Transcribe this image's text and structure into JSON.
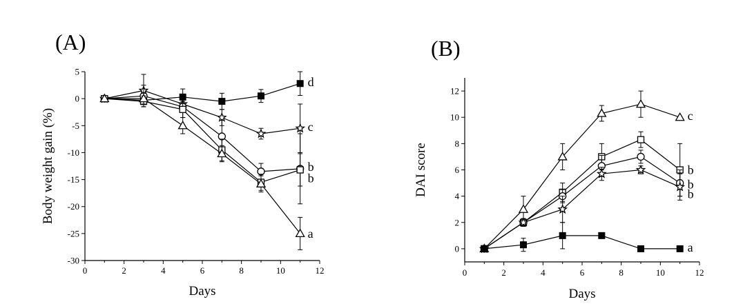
{
  "colors": {
    "ink": "#000000",
    "background": "#ffffff",
    "open_marker_fill": "#ffffff"
  },
  "chart_data": [
    {
      "panel": "(A)",
      "type": "line",
      "xlabel": "Days",
      "ylabel": "Body weight gain (%)",
      "xlim": [
        0,
        12
      ],
      "ylim": [
        -30,
        5
      ],
      "xticks": [
        0,
        2,
        4,
        6,
        8,
        10,
        12
      ],
      "yticks": [
        5,
        0,
        -5,
        -10,
        -15,
        -20,
        -25,
        -30
      ],
      "grid": false,
      "series": [
        {
          "name": "filled-square",
          "marker": "filled-square",
          "label": "d",
          "x": [
            1,
            3,
            5,
            7,
            9,
            11
          ],
          "y": [
            0,
            -0.3,
            0.3,
            -0.5,
            0.5,
            2.8
          ],
          "err": [
            0,
            0.8,
            1.5,
            1.5,
            1.2,
            2.2
          ]
        },
        {
          "name": "star",
          "marker": "star",
          "label": "c",
          "x": [
            1,
            3,
            5,
            7,
            9,
            11
          ],
          "y": [
            0,
            1.5,
            -1.0,
            -3.5,
            -6.5,
            -5.5
          ],
          "err": [
            0,
            3.0,
            1.5,
            1.5,
            1.0,
            4.5
          ]
        },
        {
          "name": "open-circle",
          "marker": "open-circle",
          "label": "b",
          "x": [
            1,
            3,
            5,
            7,
            9,
            11
          ],
          "y": [
            0,
            0.5,
            -1.5,
            -7.0,
            -13.5,
            -13.0
          ],
          "err": [
            0,
            2.0,
            2.0,
            3.0,
            1.5,
            6.5
          ]
        },
        {
          "name": "open-square",
          "marker": "open-square",
          "label": "b",
          "x": [
            1,
            3,
            5,
            7,
            9,
            11
          ],
          "y": [
            0,
            -0.5,
            -2.0,
            -9.5,
            -15.5,
            -13.2
          ],
          "err": [
            0,
            1.0,
            1.5,
            2.0,
            1.5,
            3.0
          ]
        },
        {
          "name": "open-triangle",
          "marker": "open-triangle",
          "label": "a",
          "x": [
            1,
            3,
            5,
            7,
            9,
            11
          ],
          "y": [
            0,
            0,
            -5.0,
            -10.2,
            -15.8,
            -25.0
          ],
          "err": [
            0,
            1.0,
            1.5,
            1.5,
            1.5,
            3.0
          ]
        }
      ]
    },
    {
      "panel": "(B)",
      "type": "line",
      "xlabel": "Days",
      "ylabel": "DAI score",
      "xlim": [
        0,
        12
      ],
      "ylim": [
        -1,
        13
      ],
      "xticks": [
        0,
        2,
        4,
        6,
        8,
        10,
        12
      ],
      "yticks": [
        0,
        2,
        4,
        6,
        8,
        10,
        12
      ],
      "grid": false,
      "series": [
        {
          "name": "open-triangle",
          "marker": "open-triangle",
          "label": "c",
          "x": [
            1,
            3,
            5,
            7,
            9,
            11
          ],
          "y": [
            0,
            3.0,
            7.0,
            10.3,
            11.0,
            10.0
          ],
          "err": [
            0,
            1.0,
            1.0,
            0.6,
            1.0,
            0
          ]
        },
        {
          "name": "open-square",
          "marker": "open-square",
          "label": "b",
          "x": [
            1,
            3,
            5,
            7,
            9,
            11
          ],
          "y": [
            0,
            2.0,
            4.3,
            7.0,
            8.3,
            6.0
          ],
          "err": [
            0,
            0.3,
            0.7,
            1.0,
            0.6,
            2.0
          ]
        },
        {
          "name": "open-circle",
          "marker": "open-circle",
          "label": "b",
          "x": [
            1,
            3,
            5,
            7,
            9,
            11
          ],
          "y": [
            0,
            2.0,
            4.0,
            6.3,
            7.0,
            5.0
          ],
          "err": [
            0,
            0.3,
            0.5,
            0.8,
            0.5,
            1.0
          ]
        },
        {
          "name": "star",
          "marker": "star",
          "label": "b",
          "x": [
            1,
            3,
            5,
            7,
            9,
            11
          ],
          "y": [
            0,
            2.0,
            3.0,
            5.7,
            6.0,
            4.7
          ],
          "err": [
            0,
            0.3,
            1.0,
            0.5,
            0.3,
            1.0
          ]
        },
        {
          "name": "filled-square",
          "marker": "filled-square",
          "label": "a",
          "x": [
            1,
            3,
            5,
            7,
            9,
            11
          ],
          "y": [
            0,
            0.3,
            1.0,
            1.0,
            0,
            0
          ],
          "err": [
            0,
            0.5,
            1.0,
            0.2,
            0,
            0
          ]
        }
      ]
    }
  ]
}
